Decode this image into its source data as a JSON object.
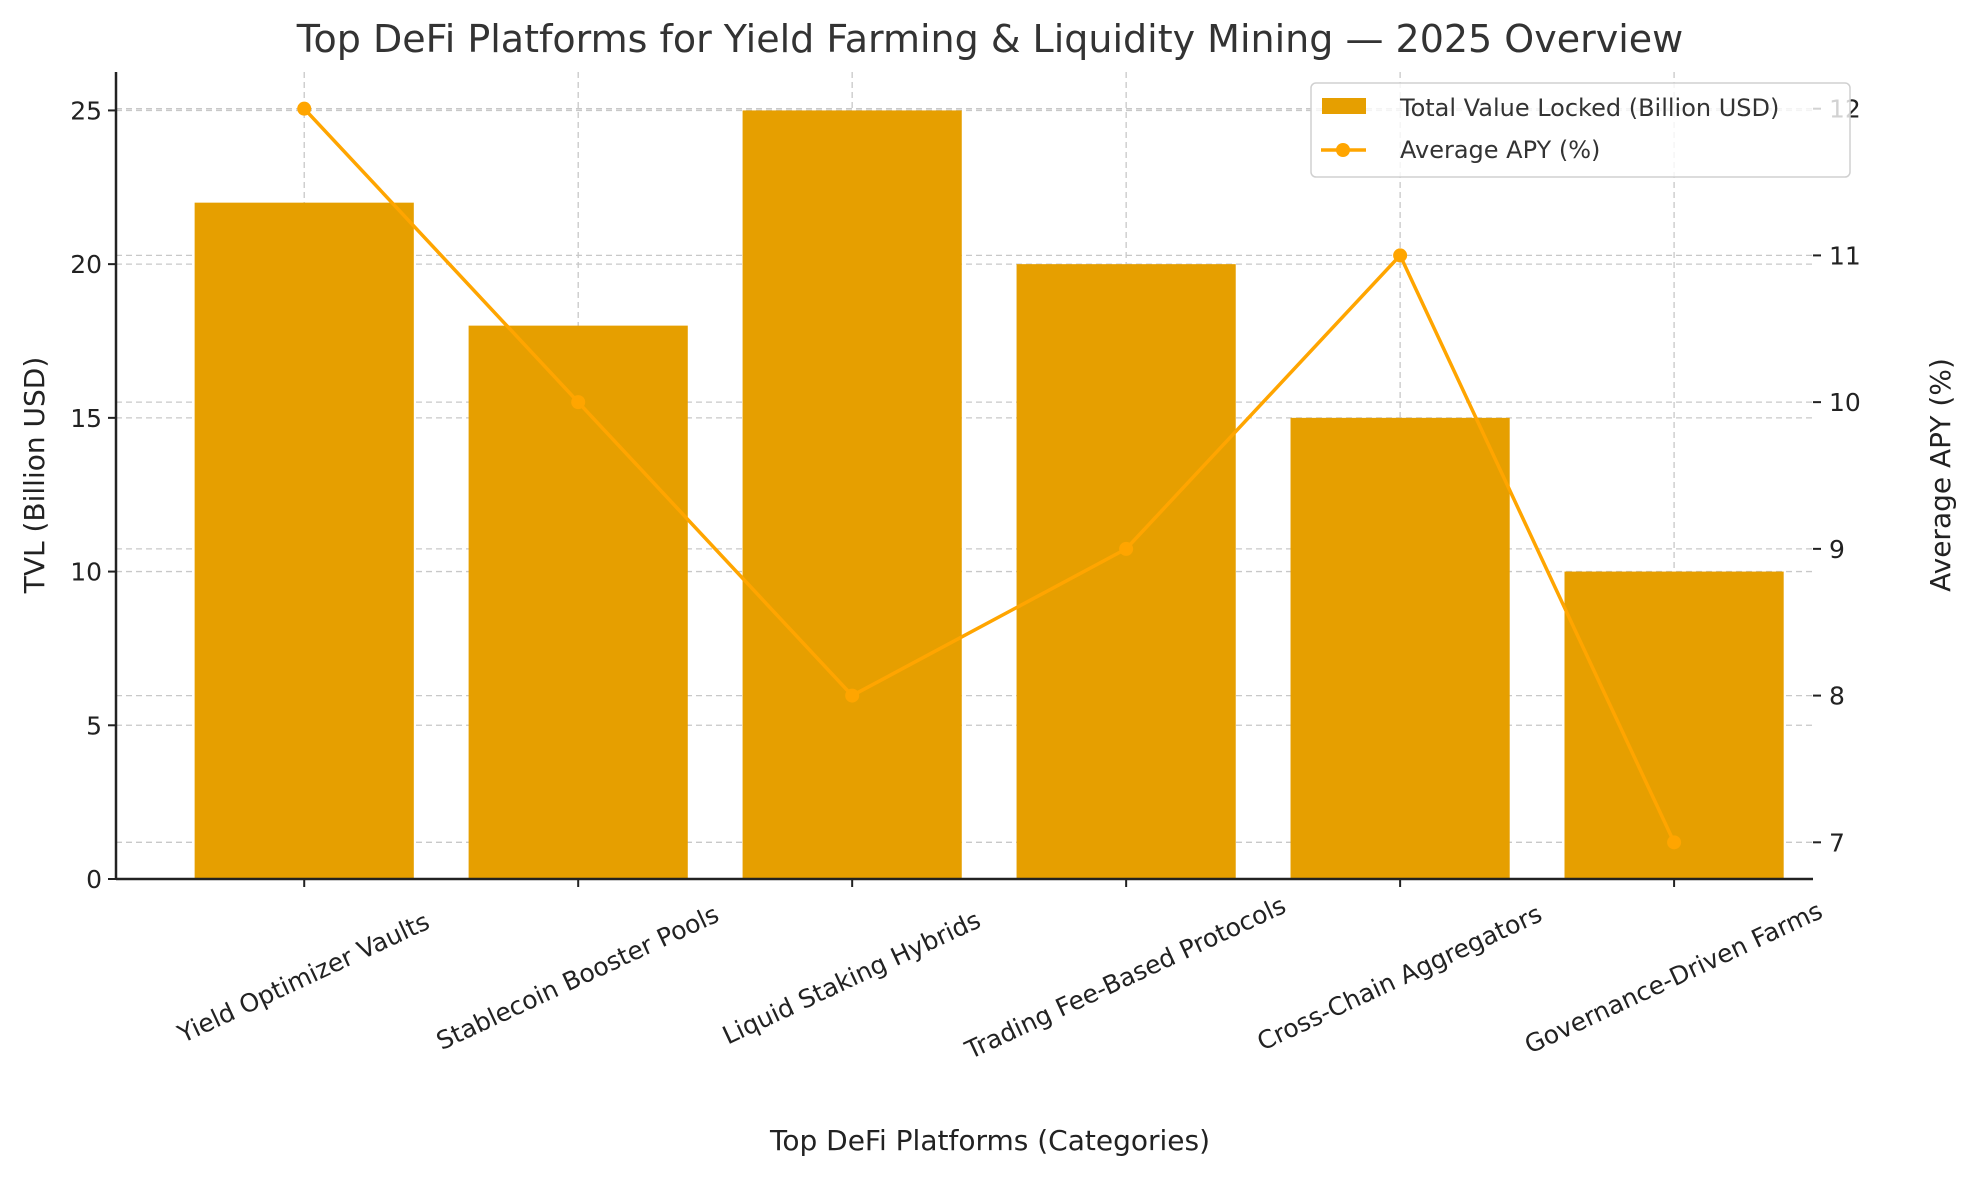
{
  "chart_data": {
    "type": "bar",
    "title": "Top DeFi Platforms for Yield Farming & Liquidity Mining — 2025 Overview",
    "xlabel": "Top DeFi Platforms (Categories)",
    "ylabel": "TVL (Billion USD)",
    "y2label": "Average APY (%)",
    "categories": [
      "Yield Optimizer Vaults",
      "Stablecoin Booster Pools",
      "Liquid Staking Hybrids",
      "Trading Fee-Based Protocols",
      "Cross-Chain Aggregators",
      "Governance-Driven Farms"
    ],
    "series": [
      {
        "name": "Total Value Locked (Billion USD)",
        "type": "bar",
        "axis": "left",
        "color": "#e69f00",
        "values": [
          22,
          18,
          25,
          20,
          15,
          10
        ]
      },
      {
        "name": "Average APY (%)",
        "type": "line",
        "axis": "right",
        "color": "#ffa500",
        "marker": "circle",
        "values": [
          12,
          10,
          8,
          9,
          11,
          7
        ]
      }
    ],
    "ylim": [
      0,
      26.25
    ],
    "y2lim": [
      6.75,
      12.25
    ],
    "yticks": [
      0,
      5,
      10,
      15,
      20,
      25
    ],
    "y2ticks": [
      7,
      8,
      9,
      10,
      11,
      12
    ],
    "grid": true,
    "legend": "top-right"
  }
}
